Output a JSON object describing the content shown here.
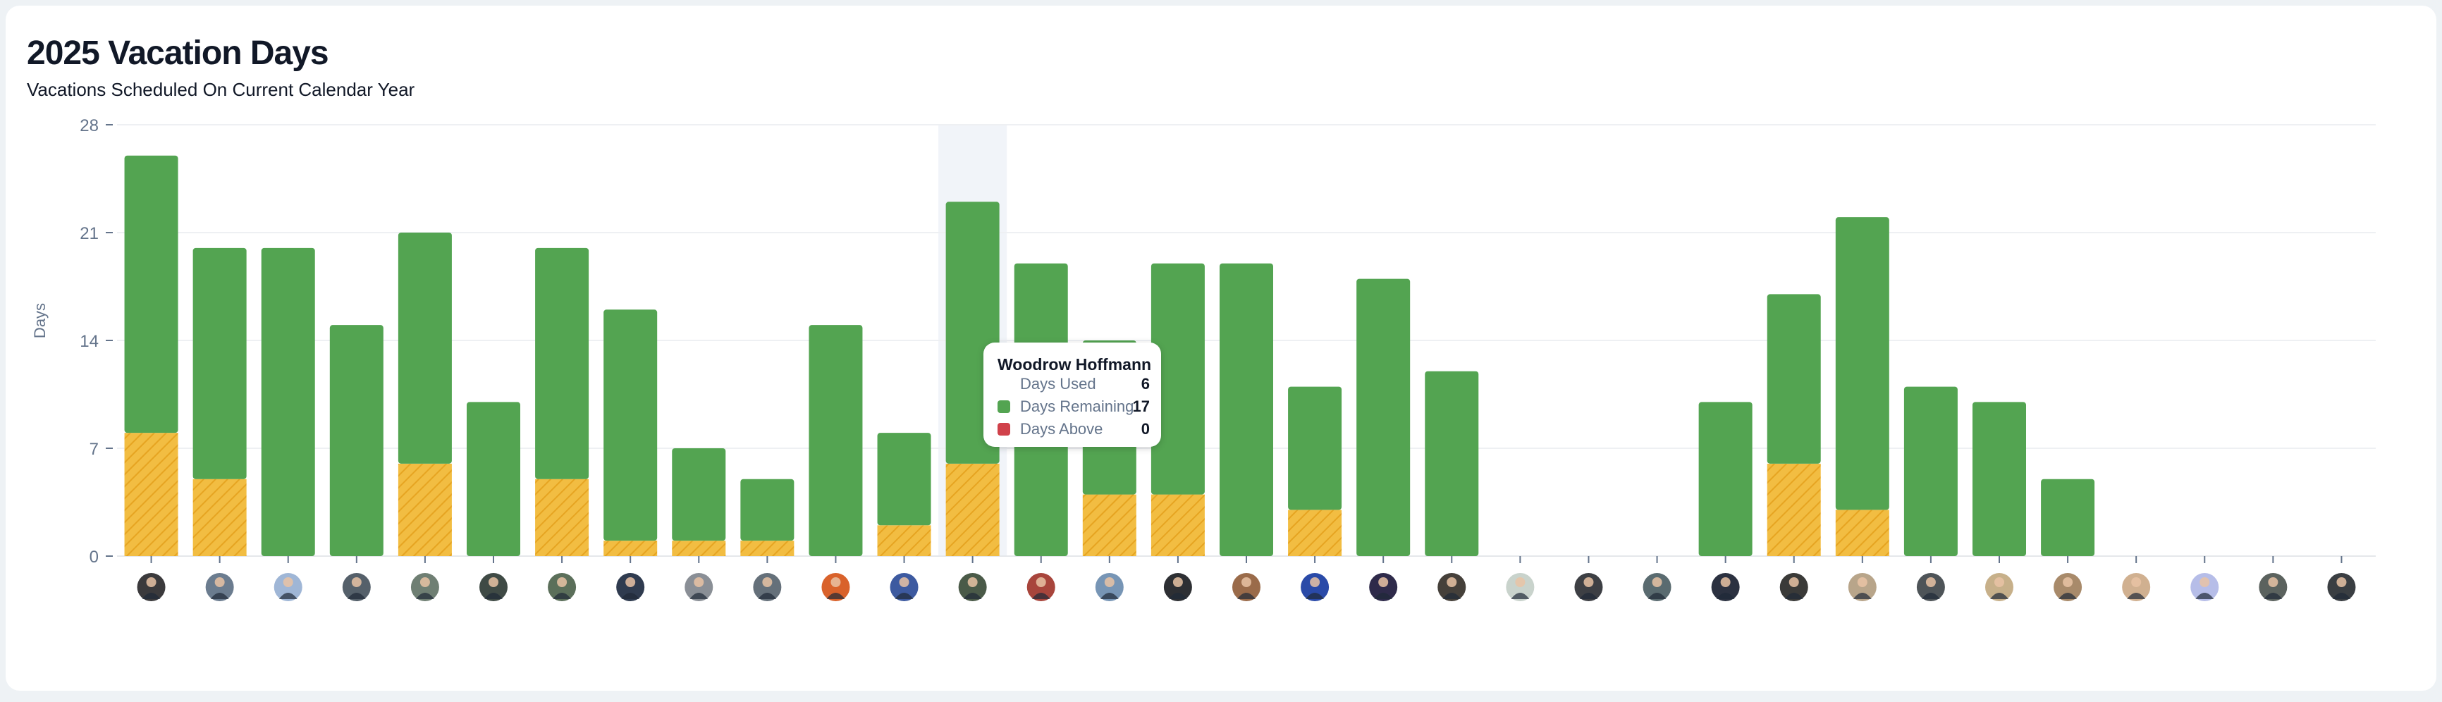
{
  "header": {
    "title": "2025 Vacation Days",
    "subtitle": "Vacations Scheduled On Current Calendar Year"
  },
  "colors": {
    "used": "#f2bd42",
    "used_hatch": "#e6a421",
    "remaining": "#53a451",
    "above": "#d0414a",
    "grid": "#eef0f3",
    "highlight": "#f1f4f9"
  },
  "chart_data": {
    "type": "bar",
    "stacked": true,
    "title": "2025 Vacation Days",
    "ylabel": "Days",
    "xlabel": "",
    "ylim": [
      0,
      28
    ],
    "yticks": [
      "0",
      "7",
      "14",
      "21",
      "28"
    ],
    "grid": true,
    "categories_note": "employee avatars",
    "series": [
      {
        "name": "Days Used",
        "values": [
          8,
          5,
          0,
          0,
          6,
          0,
          5,
          1,
          1,
          1,
          0,
          2,
          6,
          0,
          4,
          4,
          0,
          3,
          0,
          0,
          0,
          0,
          0,
          0,
          6,
          3,
          0,
          0,
          0,
          0,
          0,
          0,
          0
        ]
      },
      {
        "name": "Days Remaining",
        "values": [
          18,
          15,
          20,
          15,
          15,
          10,
          15,
          15,
          6,
          4,
          15,
          6,
          17,
          19,
          10,
          15,
          19,
          8,
          18,
          12,
          0,
          0,
          0,
          10,
          11,
          19,
          11,
          10,
          5,
          0,
          0,
          0,
          0
        ]
      },
      {
        "name": "Days Above",
        "values": [
          0,
          0,
          0,
          0,
          0,
          0,
          0,
          0,
          0,
          0,
          0,
          0,
          0,
          0,
          0,
          0,
          0,
          0,
          0,
          0,
          0,
          0,
          0,
          0,
          0,
          0,
          0,
          0,
          0,
          0,
          0,
          0,
          0
        ]
      }
    ],
    "highlighted_index": 12
  },
  "tooltip": {
    "name": "Woodrow Hoffmann",
    "rows": [
      {
        "label": "Days Used",
        "value": "6"
      },
      {
        "label": "Days Remaining",
        "value": "17"
      },
      {
        "label": "Days Above",
        "value": "0"
      }
    ]
  }
}
